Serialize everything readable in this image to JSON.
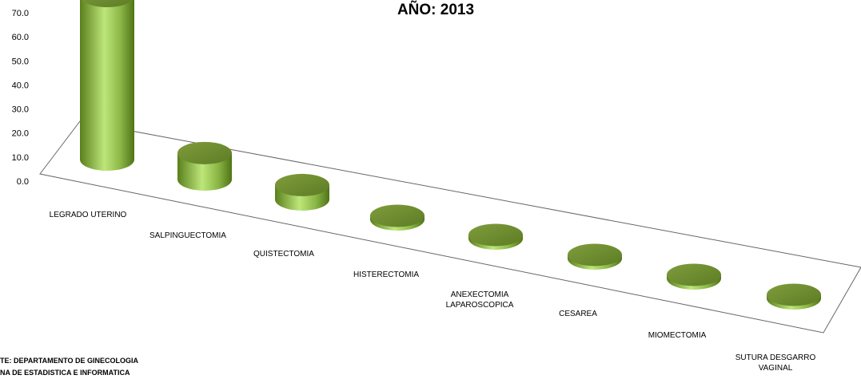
{
  "chart_data": {
    "type": "bar",
    "title": "AÑO: 2013",
    "xlabel": "",
    "ylabel": "",
    "ylim": [
      0,
      70
    ],
    "yticks": [
      "0.0",
      "10.0",
      "20.0",
      "30.0",
      "40.0",
      "50.0",
      "60.0",
      "70.0"
    ],
    "categories": [
      [
        "LEGRADO UTERINO"
      ],
      [
        "SALPINGUECTOMIA"
      ],
      [
        "QUISTECTOMIA"
      ],
      [
        "HISTERECTOMIA"
      ],
      [
        "ANEXECTOMIA",
        "LAPAROSCOPICA"
      ],
      [
        "CESAREA"
      ],
      [
        "MIOMECTOMIA"
      ],
      [
        "SUTURA DESGARRO",
        "VAGINAL"
      ]
    ],
    "values": [
      68.0,
      11.0,
      6.0,
      1.5,
      1.5,
      1.5,
      1.5,
      1.5
    ],
    "grid": false,
    "legend": "none",
    "style": "3d-cylinder"
  },
  "source": {
    "line1": "TE:  DEPARTAMENTO  DE GINECOLOGIA",
    "line2": "NA  DE ESTADISTICA  E INFORMATICA"
  },
  "colors": {
    "bar_side_dark": "#5a7f1c",
    "bar_side_light": "#bde67a",
    "bar_top": "#6e8f2e",
    "floor_stroke": "#666666"
  }
}
